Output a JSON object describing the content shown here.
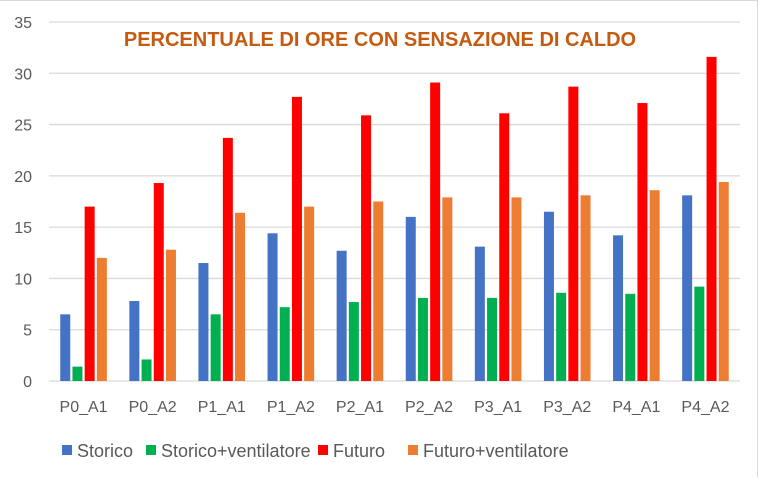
{
  "chart_data": {
    "type": "bar",
    "title": "PERCENTUALE DI ORE CON SENSAZIONE DI CALDO",
    "xlabel": "",
    "ylabel": "",
    "ylim": [
      0,
      35
    ],
    "yticks": [
      0,
      5,
      10,
      15,
      20,
      25,
      30,
      35
    ],
    "grid": true,
    "legend_position": "bottom",
    "categories": [
      "P0_A1",
      "P0_A2",
      "P1_A1",
      "P1_A2",
      "P2_A1",
      "P2_A2",
      "P3_A1",
      "P3_A2",
      "P4_A1",
      "P4_A2"
    ],
    "series": [
      {
        "name": "Storico",
        "color": "#4472C4",
        "values": [
          6.5,
          7.8,
          11.5,
          14.4,
          12.7,
          16.0,
          13.1,
          16.5,
          14.2,
          18.1
        ]
      },
      {
        "name": "Storico+ventilatore",
        "color": "#00B050",
        "values": [
          1.4,
          2.1,
          6.5,
          7.2,
          7.7,
          8.1,
          8.1,
          8.6,
          8.5,
          9.2
        ]
      },
      {
        "name": "Futuro",
        "color": "#FF0000",
        "values": [
          17.0,
          19.3,
          23.7,
          27.7,
          25.9,
          29.1,
          26.1,
          28.7,
          27.1,
          31.6
        ]
      },
      {
        "name": "Futuro+ventilatore",
        "color": "#ED7D31",
        "values": [
          12.0,
          12.8,
          16.4,
          17.0,
          17.5,
          17.9,
          17.9,
          18.1,
          18.6,
          19.4
        ]
      }
    ]
  }
}
